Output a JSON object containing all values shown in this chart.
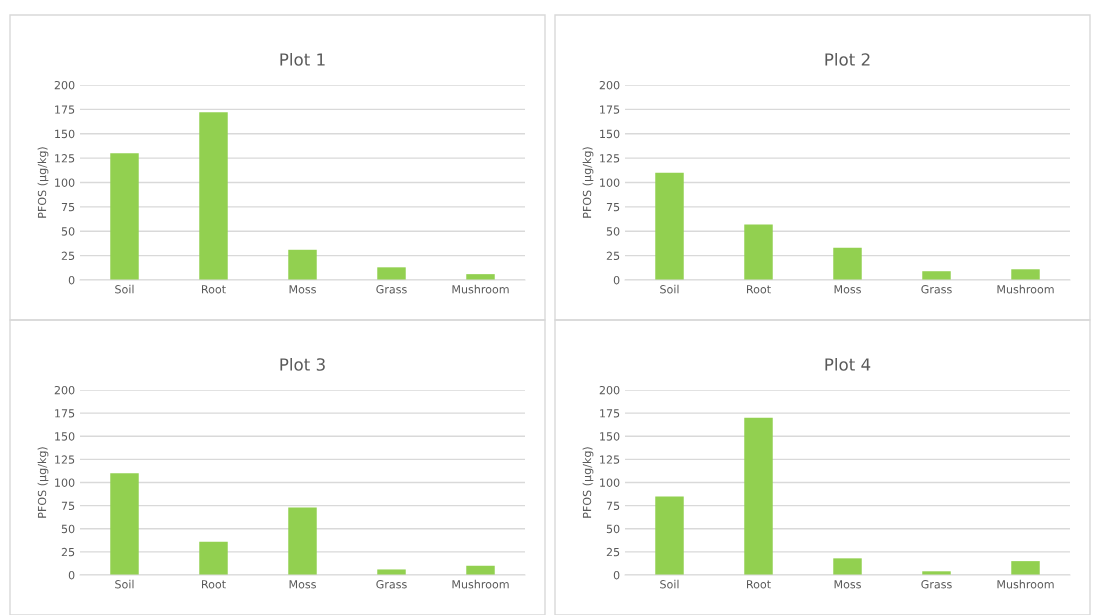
{
  "chart_data": [
    {
      "type": "bar",
      "title": "Plot 1",
      "ylabel": "PFOS (µg/kg)",
      "categories": [
        "Soil",
        "Root",
        "Moss",
        "Grass",
        "Mushroom"
      ],
      "values": [
        130,
        172,
        31,
        13,
        6
      ],
      "color": "#92d050",
      "ylim": [
        0,
        200
      ],
      "yticks": [
        0,
        25,
        50,
        75,
        100,
        125,
        150,
        175,
        200
      ],
      "grid": "y"
    },
    {
      "type": "bar",
      "title": "Plot 2",
      "ylabel": "PFOS (µg/kg)",
      "categories": [
        "Soil",
        "Root",
        "Moss",
        "Grass",
        "Mushroom"
      ],
      "values": [
        110,
        57,
        33,
        9,
        11
      ],
      "color": "#92d050",
      "ylim": [
        0,
        200
      ],
      "yticks": [
        0,
        25,
        50,
        75,
        100,
        125,
        150,
        175,
        200
      ],
      "grid": "y"
    },
    {
      "type": "bar",
      "title": "Plot 3",
      "ylabel": "PFOS (µg/kg)",
      "categories": [
        "Soil",
        "Root",
        "Moss",
        "Grass",
        "Mushroom"
      ],
      "values": [
        110,
        36,
        73,
        6,
        10
      ],
      "color": "#92d050",
      "ylim": [
        0,
        200
      ],
      "yticks": [
        0,
        25,
        50,
        75,
        100,
        125,
        150,
        175,
        200
      ],
      "grid": "y"
    },
    {
      "type": "bar",
      "title": "Plot 4",
      "ylabel": "PFOS (µg/kg)",
      "categories": [
        "Soil",
        "Root",
        "Moss",
        "Grass",
        "Mushroom"
      ],
      "values": [
        85,
        170,
        18,
        4,
        15
      ],
      "color": "#92d050",
      "ylim": [
        0,
        200
      ],
      "yticks": [
        0,
        25,
        50,
        75,
        100,
        125,
        150,
        175,
        200
      ],
      "grid": "y"
    }
  ]
}
